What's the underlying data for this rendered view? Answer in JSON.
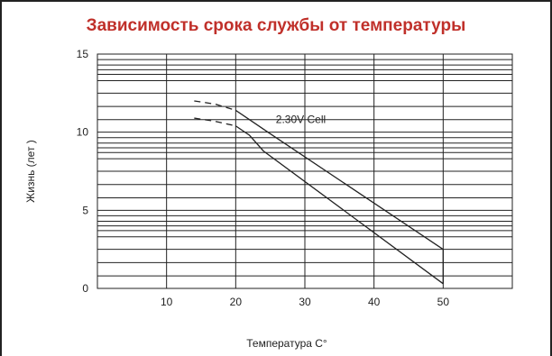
{
  "chart_data": {
    "type": "line",
    "title": "Зависимость срока службы от температуры",
    "xlabel": "Температура C°",
    "ylabel": "Жизнь (лет )",
    "xlim": [
      0,
      60
    ],
    "ylim": [
      0,
      15
    ],
    "x_ticks": [
      "10",
      "20",
      "30",
      "40",
      "50"
    ],
    "y_ticks": [
      "0",
      "5",
      "10",
      "15"
    ],
    "annotation": "2.30V Cell",
    "grid": true,
    "series": [
      {
        "name": "2.30V Cell",
        "upper": {
          "x": [
            14,
            17,
            20,
            22,
            25,
            50
          ],
          "y": [
            12.0,
            11.8,
            11.4,
            10.8,
            9.9,
            2.5
          ]
        },
        "lower": {
          "x": [
            14,
            17,
            20,
            22,
            24,
            50
          ],
          "y": [
            10.9,
            10.7,
            10.4,
            9.8,
            8.8,
            0.3
          ]
        },
        "dashed_until_x": 20
      }
    ]
  }
}
